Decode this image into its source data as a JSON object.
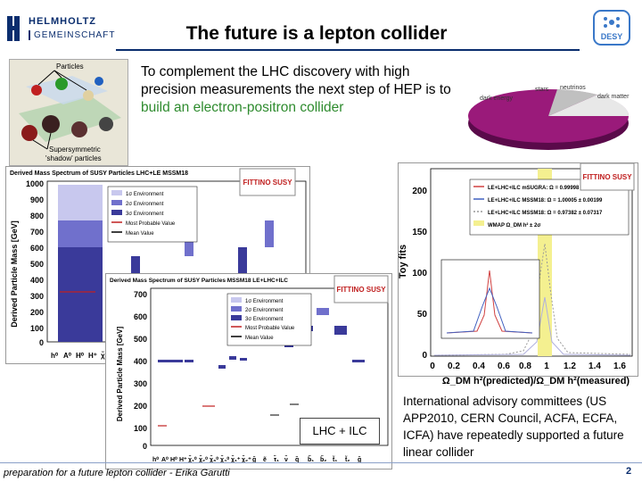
{
  "header": {
    "logo_line1": "HELMHOLTZ",
    "logo_line2": "GEMEINSCHAFT",
    "title": "The future is a lepton collider",
    "desy_logo": "DESY"
  },
  "intro": {
    "text_black": "To complement the LHC discovery with high precision measurements the next step of HEP is to ",
    "text_green": "build an electron-positron collider"
  },
  "particles_image": {
    "label_top": "Particles",
    "label_bottom_1": "Supersymmetric",
    "label_bottom_2": "'shadow' particles"
  },
  "pie_image": {
    "labels": [
      "stars",
      "neutrinos",
      "dark matter",
      "dark energy"
    ]
  },
  "plot1": {
    "title": "Derived Mass Spectrum of SUSY Particles LHC+LE MSSM18",
    "ylabel": "Derived Particle Mass [GeV]",
    "yticks": [
      "1000",
      "900",
      "800",
      "700",
      "600",
      "500",
      "400",
      "300",
      "200",
      "100",
      "0"
    ],
    "xticks": [
      "h⁰",
      "A⁰",
      "H⁰",
      "H⁺",
      "χ̃₁⁰"
    ],
    "legend": [
      "1σ Environment",
      "2σ Environment",
      "3σ Environment",
      "Most Probable Value",
      "Mean Value"
    ],
    "badge": "FITTINO SUSY"
  },
  "plot2": {
    "title": "Derived Mass Spectrum of SUSY Particles MSSM18 LE+LHC+ILC",
    "ylabel": "Derived Particle Mass [GeV]",
    "yticks": [
      "700",
      "600",
      "500",
      "400",
      "300",
      "200",
      "100",
      "0"
    ],
    "xticks": [
      "h⁰",
      "A⁰",
      "H⁰",
      "H⁺",
      "χ̃₁⁰",
      "χ̃₂⁰",
      "χ̃₃⁰",
      "χ̃₄⁰",
      "χ̃₁⁺",
      "χ̃₂⁺",
      "g̃",
      "ẽ",
      "τ̃₁",
      "ν̃",
      "q̃",
      "b̃₁",
      "b̃₂",
      "t̃₁",
      "t̃₂",
      "g̃"
    ],
    "legend": [
      "1σ Environment",
      "2σ Environment",
      "3σ Environment",
      "Most Probable Value",
      "Mean Value"
    ],
    "badge": "FITTINO SUSY"
  },
  "plot3": {
    "ylabel": "Toy fits",
    "xlabel": "Ω_DM h²(predicted)/Ω_DM h²(measured)",
    "yticks": [
      "200",
      "150",
      "100",
      "50",
      "0"
    ],
    "xticks": [
      "0",
      "0.2",
      "0.4",
      "0.6",
      "0.8",
      "1",
      "1.2",
      "1.4",
      "1.6"
    ],
    "legend": [
      "LE+LHC+ILC mSUGRA: Ω = 0.99998 ± 0.00070",
      "LE+LHC+ILC MSSM18: Ω = 1.00005 ± 0.00199",
      "LE+LHC+ILC MSSM18: Ω = 0.97382 ± 0.07317",
      "WMAP Ω_DM h² ± 2σ"
    ],
    "badge": "FITTINO SUSY"
  },
  "callout": "LHC + ILC",
  "advisory": "International advisory committees (US APP2010, CERN Council, ACFA, ECFA, ICFA) have repeatedly supported a future linear collider",
  "footer": "preparation for a future lepton collider - Erika Garutti",
  "page_number": "2"
}
